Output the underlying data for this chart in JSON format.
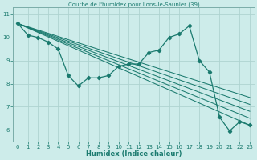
{
  "title": "Courbe de l'humidex pour Lons-le-Saunier (39)",
  "xlabel": "Humidex (Indice chaleur)",
  "background_color": "#cdecea",
  "grid_color": "#aed4d0",
  "line_color": "#1a7a6e",
  "spine_color": "#7aada8",
  "xlim": [
    -0.5,
    23.5
  ],
  "ylim": [
    5.5,
    11.3
  ],
  "xticks": [
    0,
    1,
    2,
    3,
    4,
    5,
    6,
    7,
    8,
    9,
    10,
    11,
    12,
    13,
    14,
    15,
    16,
    17,
    18,
    19,
    20,
    21,
    22,
    23
  ],
  "yticks": [
    6,
    7,
    8,
    9,
    10,
    11
  ],
  "series": [
    [
      0,
      10.6
    ],
    [
      1,
      10.1
    ],
    [
      2,
      10.0
    ],
    [
      3,
      9.8
    ],
    [
      4,
      9.5
    ],
    [
      5,
      8.35
    ],
    [
      6,
      7.9
    ],
    [
      7,
      8.25
    ],
    [
      8,
      8.25
    ],
    [
      9,
      8.35
    ],
    [
      10,
      8.75
    ],
    [
      11,
      8.85
    ],
    [
      12,
      8.85
    ],
    [
      13,
      9.35
    ],
    [
      14,
      9.45
    ],
    [
      15,
      10.0
    ],
    [
      16,
      10.15
    ],
    [
      17,
      10.5
    ],
    [
      18,
      9.0
    ],
    [
      19,
      8.5
    ],
    [
      20,
      6.55
    ],
    [
      21,
      5.95
    ],
    [
      22,
      6.35
    ],
    [
      23,
      6.2
    ]
  ],
  "fan_lines": [
    [
      [
        0,
        10.6
      ],
      [
        23,
        6.2
      ]
    ],
    [
      [
        0,
        10.6
      ],
      [
        23,
        6.5
      ]
    ],
    [
      [
        0,
        10.6
      ],
      [
        23,
        6.8
      ]
    ],
    [
      [
        0,
        10.6
      ],
      [
        23,
        7.1
      ]
    ],
    [
      [
        0,
        10.6
      ],
      [
        23,
        7.4
      ]
    ]
  ]
}
